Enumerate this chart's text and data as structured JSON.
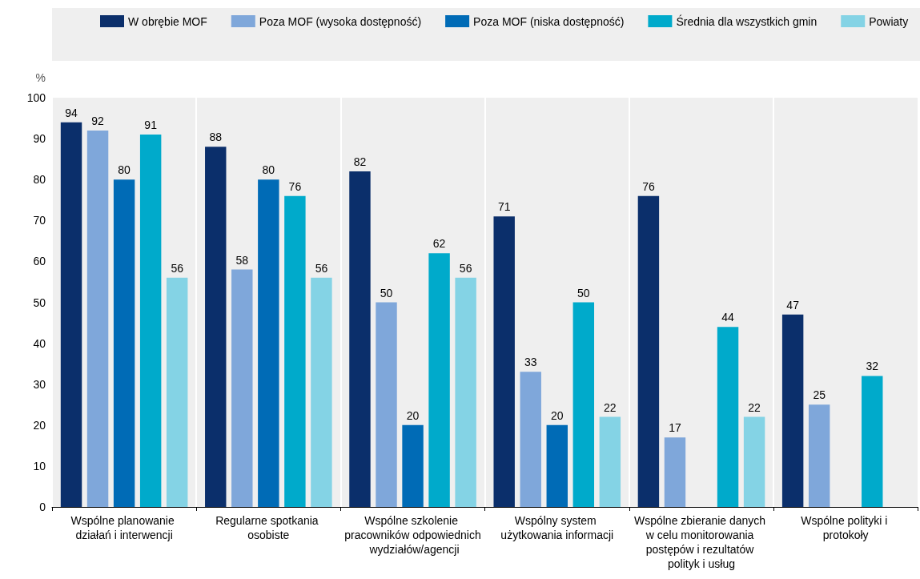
{
  "chart_data": {
    "type": "bar",
    "ylabel": "%",
    "categories": [
      "Wspólne planowanie działań i interwencji",
      "Regularne spotkania osobiste",
      "Wspólne szkolenie pracowników odpowiednich wydziałów/agencji",
      "Wspólny system użytkowania informacji",
      "Wspólne zbieranie danych w celu monitorowania postępów i rezultatów polityk i usług",
      "Wspólne polityki i protokoły"
    ],
    "series": [
      {
        "name": "W obrębie MOF",
        "color": "#0b2f6b",
        "values": [
          94,
          88,
          82,
          71,
          76,
          47
        ]
      },
      {
        "name": "Poza MOF (wysoka dostępność)",
        "color": "#7fa7da",
        "values": [
          92,
          58,
          50,
          33,
          17,
          25
        ]
      },
      {
        "name": "Poza MOF (niska dostępność)",
        "color": "#006bb6",
        "values": [
          80,
          80,
          20,
          20,
          null,
          null
        ]
      },
      {
        "name": "Średnia dla wszystkich gmin",
        "color": "#00aacb",
        "values": [
          91,
          76,
          62,
          50,
          44,
          32
        ]
      },
      {
        "name": "Powiaty",
        "color": "#84d3e5",
        "values": [
          56,
          56,
          56,
          22,
          22,
          null
        ]
      }
    ],
    "ylim": [
      0,
      100
    ],
    "yticks": [
      0,
      10,
      20,
      30,
      40,
      50,
      60,
      70,
      80,
      90,
      100
    ],
    "legend": "top",
    "data_labels": true
  }
}
